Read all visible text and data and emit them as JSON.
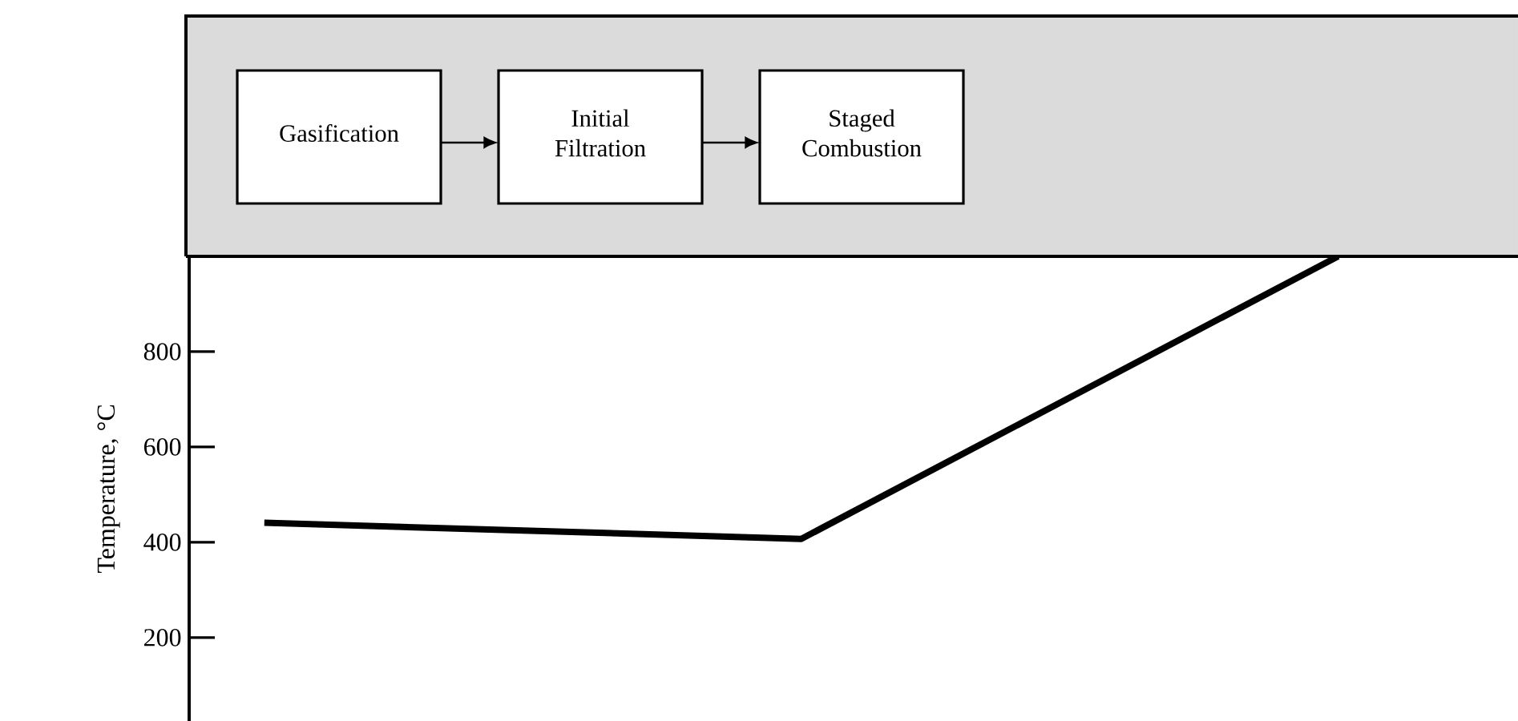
{
  "chart_data": {
    "type": "line",
    "ylabel": "Temperature, °C",
    "categories": [
      null,
      null,
      null
    ],
    "values": [
      441,
      407,
      1000
    ],
    "color": "#000000",
    "line_style": "solid",
    "ylim": [
      25,
      1000
    ],
    "yticks": [
      200,
      400,
      600,
      800
    ],
    "tick_labels": "y",
    "annotations": [
      "Gasification",
      "Initial Filtration",
      "Staged Combustion"
    ]
  }
}
